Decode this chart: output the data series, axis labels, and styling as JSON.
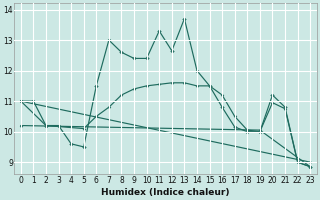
{
  "title": "",
  "xlabel": "Humidex (Indice chaleur)",
  "background_color": "#cce8e4",
  "grid_color": "#ffffff",
  "line_color": "#1e6b5e",
  "xlim": [
    -0.5,
    23.5
  ],
  "ylim": [
    8.6,
    14.2
  ],
  "xticks": [
    0,
    1,
    2,
    3,
    4,
    5,
    6,
    7,
    8,
    9,
    10,
    11,
    12,
    13,
    14,
    15,
    16,
    17,
    18,
    19,
    20,
    21,
    22,
    23
  ],
  "yticks": [
    9,
    10,
    11,
    12,
    13,
    14
  ],
  "series": [
    {
      "x": [
        0,
        1,
        2,
        3,
        4,
        5,
        6,
        7,
        8,
        9,
        10,
        11,
        12,
        13,
        14,
        15,
        16,
        17,
        18,
        19,
        20,
        21,
        22,
        23
      ],
      "y": [
        11.0,
        11.0,
        10.2,
        10.2,
        9.6,
        9.5,
        11.5,
        13.0,
        12.6,
        12.4,
        12.4,
        13.3,
        12.65,
        13.7,
        12.0,
        11.5,
        10.8,
        10.15,
        10.0,
        10.0,
        11.2,
        10.8,
        9.0,
        8.85
      ]
    },
    {
      "x": [
        0,
        2,
        5,
        6,
        7,
        8,
        9,
        10,
        11,
        12,
        13,
        14,
        15,
        16,
        17,
        18,
        19,
        20,
        21,
        22,
        23
      ],
      "y": [
        11.0,
        10.2,
        10.1,
        10.5,
        10.8,
        11.2,
        11.4,
        11.5,
        11.55,
        11.6,
        11.6,
        11.5,
        11.5,
        11.2,
        10.5,
        10.05,
        10.0,
        10.95,
        10.75,
        9.0,
        8.85
      ]
    },
    {
      "x": [
        0,
        23
      ],
      "y": [
        11.0,
        9.0
      ]
    },
    {
      "x": [
        0,
        19,
        23
      ],
      "y": [
        10.2,
        10.05,
        8.85
      ]
    }
  ]
}
